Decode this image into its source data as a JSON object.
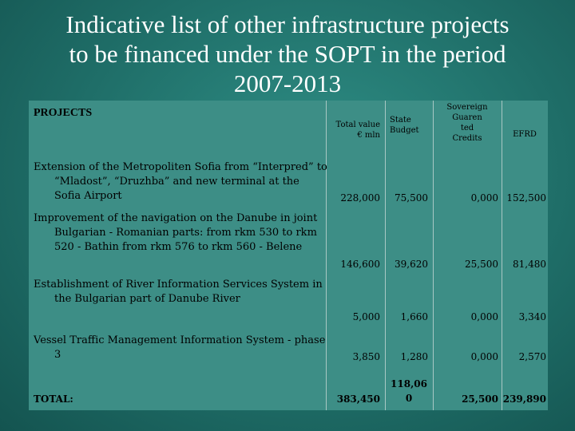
{
  "title": {
    "line1": "Indicative list of other infrastructure projects",
    "line2": "to be financed under the SOPT in the period",
    "line3": "2007-2013"
  },
  "header": {
    "projects": "PROJECTS",
    "total_value": "Total value",
    "total_unit": "€ mln",
    "state_budget_1": "State",
    "state_budget_2": "Budget",
    "sovereign_1": "Sovereign",
    "sovereign_2": "Guaren",
    "sovereign_3": "ted",
    "sovereign_4": "Credits",
    "efrd": "EFRD"
  },
  "rows": [
    {
      "project": "Extension of the Metropoliten Sofia from “Interpred” to “Mladost”, “Druzhba” and new terminal at the Sofia Airport",
      "total": "228,000",
      "state": "75,500",
      "credits": "0,000",
      "efrd": "152,500"
    },
    {
      "project": "Improvement of the navigation on the Danube in joint Bulgarian - Romanian parts: from rkm 530 to rkm 520 - Bathin from rkm 576 to rkm 560 - Belene",
      "total": "146,600",
      "state": "39,620",
      "credits": "25,500",
      "efrd": "81,480"
    },
    {
      "project": "Establishment of River Information Services System in the Bulgarian part of Danube River",
      "total": "5,000",
      "state": "1,660",
      "credits": "0,000",
      "efrd": "3,340"
    },
    {
      "project": "Vessel Traffic Management Information System - phase 3",
      "total": "3,850",
      "state": "1,280",
      "credits": "0,000",
      "efrd": "2,570"
    }
  ],
  "totals": {
    "label": "TOTAL:",
    "total": "383,450",
    "state_1": "118,06",
    "state_2": "0",
    "credits": "25,500",
    "efrd": "239,890"
  }
}
